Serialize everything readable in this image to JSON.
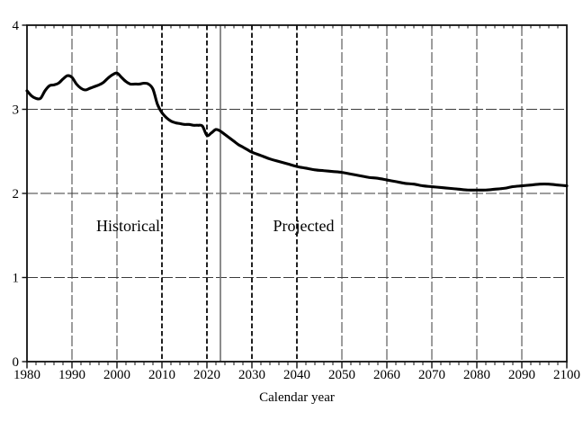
{
  "chart_data": {
    "type": "line",
    "title": "",
    "xlabel": "Calendar year",
    "ylabel": "",
    "xlim": [
      1980,
      2100
    ],
    "ylim": [
      0,
      4
    ],
    "x_major_ticks": [
      1980,
      1990,
      2000,
      2010,
      2020,
      2030,
      2040,
      2050,
      2060,
      2070,
      2080,
      2090,
      2100
    ],
    "x_tick_labels": [
      "1980",
      "1990",
      "2000",
      "2010",
      "2020",
      "2030",
      "2040",
      "2050",
      "2060",
      "2070",
      "2080",
      "2090",
      "2100"
    ],
    "x_minor_tick_step_years": 2,
    "y_ticks": [
      0,
      1,
      2,
      3,
      4
    ],
    "y_tick_labels": [
      "0",
      "1",
      "2",
      "3",
      "4"
    ],
    "grid": {
      "horizontal_values": [
        1,
        2,
        3
      ],
      "vertical_light_years": [
        1990,
        2000,
        2050,
        2060,
        2070,
        2080,
        2090
      ],
      "vertical_heavy_years": [
        2010,
        2020,
        2030,
        2040
      ],
      "divider_solid_year": 2023
    },
    "legend": "none",
    "annotations": [
      {
        "label": "Historical",
        "x": 2002.5,
        "y": 1.62
      },
      {
        "label": "Projected",
        "x": 2041.5,
        "y": 1.62
      }
    ],
    "colors": {
      "line": "#000000",
      "grid": "#3b3b3b",
      "heavy_grid": "#161616",
      "divider": "#707070",
      "frame": "#101010",
      "text": "#000000",
      "background": "#ffffff"
    },
    "series": [
      {
        "x": [
          1980,
          1981,
          1982,
          1983,
          1984,
          1985,
          1986,
          1987,
          1988,
          1989,
          1990,
          1991,
          1992,
          1993,
          1994,
          1995,
          1996,
          1997,
          1998,
          1999,
          2000,
          2001,
          2002,
          2003,
          2004,
          2005,
          2006,
          2007,
          2008,
          2009,
          2010,
          2011,
          2012,
          2013,
          2014,
          2015,
          2016,
          2017,
          2018,
          2019,
          2020,
          2021,
          2022,
          2023,
          2024,
          2025,
          2026,
          2027,
          2028,
          2029,
          2030,
          2032,
          2034,
          2036,
          2038,
          2040,
          2042,
          2044,
          2046,
          2048,
          2050,
          2052,
          2054,
          2056,
          2058,
          2060,
          2062,
          2064,
          2066,
          2068,
          2070,
          2072,
          2074,
          2076,
          2078,
          2080,
          2082,
          2084,
          2086,
          2088,
          2090,
          2092,
          2094,
          2096,
          2098,
          2100
        ],
        "y": [
          3.22,
          3.16,
          3.13,
          3.13,
          3.22,
          3.28,
          3.29,
          3.31,
          3.36,
          3.4,
          3.38,
          3.3,
          3.25,
          3.23,
          3.25,
          3.27,
          3.29,
          3.32,
          3.37,
          3.41,
          3.43,
          3.38,
          3.33,
          3.3,
          3.3,
          3.3,
          3.31,
          3.3,
          3.24,
          3.06,
          2.96,
          2.9,
          2.86,
          2.84,
          2.83,
          2.82,
          2.82,
          2.81,
          2.81,
          2.8,
          2.69,
          2.72,
          2.76,
          2.74,
          2.7,
          2.66,
          2.62,
          2.58,
          2.55,
          2.52,
          2.49,
          2.45,
          2.41,
          2.38,
          2.35,
          2.32,
          2.3,
          2.28,
          2.27,
          2.26,
          2.25,
          2.23,
          2.21,
          2.19,
          2.18,
          2.16,
          2.14,
          2.12,
          2.11,
          2.09,
          2.08,
          2.07,
          2.06,
          2.05,
          2.04,
          2.04,
          2.04,
          2.05,
          2.06,
          2.08,
          2.09,
          2.1,
          2.11,
          2.11,
          2.1,
          2.09
        ]
      }
    ]
  }
}
